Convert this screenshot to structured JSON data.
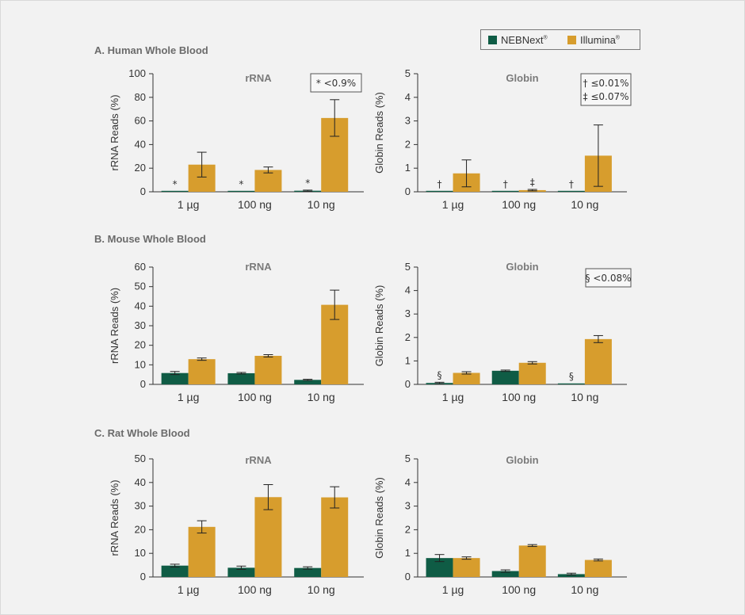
{
  "legend": [
    {
      "name": "NEBNext",
      "mark": "®",
      "color": "#0f5c45"
    },
    {
      "name": "Illumina",
      "mark": "®",
      "color": "#d79d2d"
    }
  ],
  "rows": [
    {
      "title": "A. Human Whole Blood"
    },
    {
      "title": "B. Mouse Whole Blood"
    },
    {
      "title": "C. Rat Whole Blood"
    }
  ],
  "chart_data": [
    {
      "type": "bar",
      "section": "A. Human Whole Blood",
      "title": "rRNA",
      "categories": [
        "1 µg",
        "100 ng",
        "10 ng"
      ],
      "ylabel": "rRNA Reads (%)",
      "ylim": [
        0,
        100
      ],
      "yticks": [
        0,
        20,
        40,
        60,
        80,
        100
      ],
      "series": [
        {
          "name": "NEBNext",
          "values": [
            0.3,
            0.3,
            0.9
          ],
          "errors": [
            0,
            0,
            0.5
          ]
        },
        {
          "name": "Illumina",
          "values": [
            23,
            18.5,
            62.5
          ],
          "errors": [
            10.5,
            2.5,
            15.5
          ]
        }
      ],
      "markers": [
        {
          "series": 0,
          "index": 0,
          "symbol": "*"
        },
        {
          "series": 0,
          "index": 1,
          "symbol": "*"
        },
        {
          "series": 0,
          "index": 2,
          "symbol": "*"
        }
      ],
      "annotation": [
        "* <0.9%"
      ]
    },
    {
      "type": "bar",
      "section": "A. Human Whole Blood",
      "title": "Globin",
      "categories": [
        "1 µg",
        "100 ng",
        "10 ng"
      ],
      "ylabel": "Globin Reads (%)",
      "ylim": [
        0,
        5
      ],
      "yticks": [
        0,
        1,
        2,
        3,
        4,
        5
      ],
      "series": [
        {
          "name": "NEBNext",
          "values": [
            0.01,
            0.01,
            0.01
          ],
          "errors": [
            0,
            0,
            0
          ]
        },
        {
          "name": "Illumina",
          "values": [
            0.78,
            0.07,
            1.53
          ],
          "errors": [
            0.57,
            0.03,
            1.3
          ]
        }
      ],
      "markers": [
        {
          "series": 0,
          "index": 0,
          "symbol": "†"
        },
        {
          "series": 0,
          "index": 1,
          "symbol": "†"
        },
        {
          "series": 1,
          "index": 1,
          "symbol": "‡"
        },
        {
          "series": 0,
          "index": 2,
          "symbol": "†"
        }
      ],
      "annotation": [
        "† ≤0.01%",
        "‡ ≤0.07%"
      ]
    },
    {
      "type": "bar",
      "section": "B. Mouse Whole Blood",
      "title": "rRNA",
      "categories": [
        "1 µg",
        "100 ng",
        "10 ng"
      ],
      "ylabel": "rRNA Reads (%)",
      "ylim": [
        0,
        60
      ],
      "yticks": [
        0,
        10,
        20,
        30,
        40,
        50,
        60
      ],
      "series": [
        {
          "name": "NEBNext",
          "values": [
            5.8,
            5.7,
            2.3
          ],
          "errors": [
            0.8,
            0.4,
            0.3
          ]
        },
        {
          "name": "Illumina",
          "values": [
            12.9,
            14.6,
            40.7
          ],
          "errors": [
            0.6,
            0.6,
            7.5
          ]
        }
      ],
      "markers": [],
      "annotation": []
    },
    {
      "type": "bar",
      "section": "B. Mouse Whole Blood",
      "title": "Globin",
      "categories": [
        "1 µg",
        "100 ng",
        "10 ng"
      ],
      "ylabel": "Globin Reads (%)",
      "ylim": [
        0,
        5
      ],
      "yticks": [
        0,
        1,
        2,
        3,
        4,
        5
      ],
      "series": [
        {
          "name": "NEBNext",
          "values": [
            0.06,
            0.58,
            0.03
          ],
          "errors": [
            0.03,
            0.03,
            0
          ]
        },
        {
          "name": "Illumina",
          "values": [
            0.49,
            0.92,
            1.93
          ],
          "errors": [
            0.05,
            0.05,
            0.15
          ]
        }
      ],
      "markers": [
        {
          "series": 0,
          "index": 0,
          "symbol": "§"
        },
        {
          "series": 0,
          "index": 2,
          "symbol": "§"
        }
      ],
      "annotation": [
        "§ <0.08%"
      ]
    },
    {
      "type": "bar",
      "section": "C. Rat Whole Blood",
      "title": "rRNA",
      "categories": [
        "1 µg",
        "100 ng",
        "10 ng"
      ],
      "ylabel": "rRNA Reads (%)",
      "ylim": [
        0,
        50
      ],
      "yticks": [
        0,
        10,
        20,
        30,
        40,
        50
      ],
      "series": [
        {
          "name": "NEBNext",
          "values": [
            4.8,
            3.9,
            3.8
          ],
          "errors": [
            0.6,
            0.7,
            0.5
          ]
        },
        {
          "name": "Illumina",
          "values": [
            21.2,
            33.8,
            33.7
          ],
          "errors": [
            2.6,
            5.3,
            4.5
          ]
        }
      ],
      "markers": [],
      "annotation": []
    },
    {
      "type": "bar",
      "section": "C. Rat Whole Blood",
      "title": "Globin",
      "categories": [
        "1 µg",
        "100 ng",
        "10 ng"
      ],
      "ylabel": "Globin Reads (%)",
      "ylim": [
        0,
        5
      ],
      "yticks": [
        0,
        1,
        2,
        3,
        4,
        5
      ],
      "series": [
        {
          "name": "NEBNext",
          "values": [
            0.8,
            0.25,
            0.12
          ],
          "errors": [
            0.15,
            0.05,
            0.04
          ]
        },
        {
          "name": "Illumina",
          "values": [
            0.8,
            1.33,
            0.72
          ],
          "errors": [
            0.05,
            0.04,
            0.04
          ]
        }
      ],
      "markers": [],
      "annotation": []
    }
  ]
}
